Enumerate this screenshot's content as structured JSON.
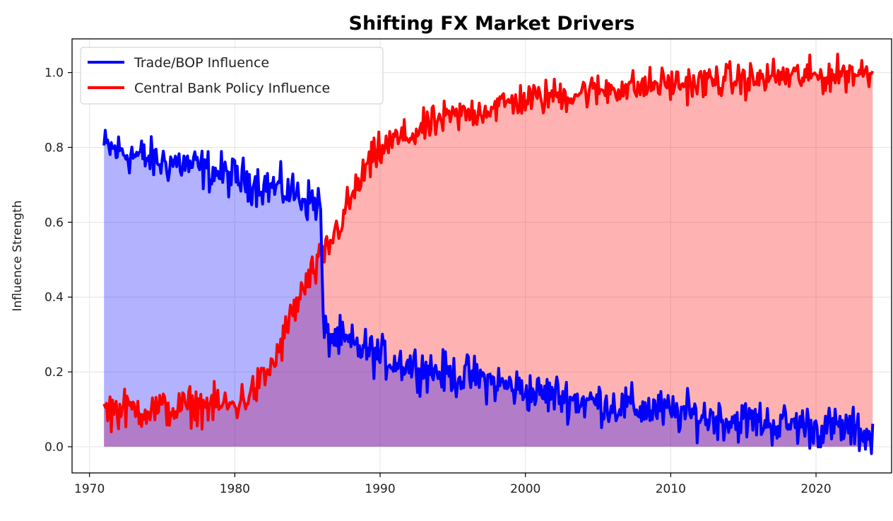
{
  "chart_data": {
    "type": "area",
    "title": "Shifting FX Market Drivers",
    "xlabel": "",
    "ylabel": "Influence Strength",
    "xlim": [
      1968.8,
      2025.2
    ],
    "ylim": [
      -0.07,
      1.09
    ],
    "x_ticks": [
      1970,
      1980,
      1990,
      2000,
      2010,
      2020
    ],
    "y_ticks": [
      0.0,
      0.2,
      0.4,
      0.6,
      0.8,
      1.0
    ],
    "y_tick_labels": [
      "0.0",
      "0.2",
      "0.4",
      "0.6",
      "0.8",
      "1.0"
    ],
    "grid": true,
    "legend_position": "upper-left",
    "x_start": 1971.0,
    "x_end": 2023.9,
    "series": [
      {
        "name": "Trade/BOP Influence",
        "color": "#0000ff",
        "fill_color": "#aab0ff",
        "x": [
          1971,
          1972,
          1973,
          1974,
          1975,
          1976,
          1977,
          1978,
          1979,
          1980,
          1981,
          1982,
          1983,
          1984,
          1985,
          1985.9,
          1986.1,
          1987,
          1988,
          1989,
          1990,
          1991,
          1992,
          1993,
          1994,
          1995,
          1996,
          1997,
          1998,
          1999,
          2000,
          2001,
          2002,
          2003,
          2004,
          2005,
          2006,
          2007,
          2008,
          2009,
          2010,
          2011,
          2012,
          2013,
          2014,
          2015,
          2016,
          2017,
          2018,
          2019,
          2020,
          2021,
          2022,
          2023,
          2023.9
        ],
        "values": [
          0.8,
          0.79,
          0.78,
          0.77,
          0.76,
          0.76,
          0.75,
          0.74,
          0.73,
          0.72,
          0.71,
          0.7,
          0.69,
          0.68,
          0.66,
          0.65,
          0.3,
          0.29,
          0.27,
          0.26,
          0.24,
          0.23,
          0.22,
          0.21,
          0.2,
          0.19,
          0.19,
          0.18,
          0.17,
          0.16,
          0.15,
          0.14,
          0.14,
          0.13,
          0.12,
          0.12,
          0.11,
          0.11,
          0.1,
          0.1,
          0.09,
          0.09,
          0.08,
          0.08,
          0.07,
          0.07,
          0.07,
          0.06,
          0.06,
          0.06,
          0.05,
          0.05,
          0.05,
          0.04,
          0.03
        ]
      },
      {
        "name": "Central Bank Policy Influence",
        "color": "#ff0000",
        "fill_color": "#ffb0b0",
        "x": [
          1971,
          1972,
          1973,
          1974,
          1975,
          1976,
          1977,
          1978,
          1979,
          1980,
          1981,
          1982,
          1983,
          1984,
          1985,
          1986,
          1987,
          1988,
          1989,
          1990,
          1991,
          1992,
          1993,
          1994,
          1995,
          1996,
          1997,
          1998,
          1999,
          2000,
          2001,
          2002,
          2003,
          2004,
          2005,
          2006,
          2007,
          2008,
          2009,
          2010,
          2011,
          2012,
          2013,
          2014,
          2015,
          2016,
          2017,
          2018,
          2019,
          2020,
          2021,
          2022,
          2023,
          2023.9
        ],
        "values": [
          0.1,
          0.1,
          0.1,
          0.1,
          0.1,
          0.1,
          0.11,
          0.11,
          0.11,
          0.11,
          0.14,
          0.18,
          0.25,
          0.36,
          0.44,
          0.5,
          0.58,
          0.66,
          0.74,
          0.79,
          0.82,
          0.83,
          0.85,
          0.87,
          0.88,
          0.89,
          0.9,
          0.91,
          0.92,
          0.93,
          0.93,
          0.94,
          0.94,
          0.95,
          0.95,
          0.96,
          0.96,
          0.96,
          0.97,
          0.97,
          0.97,
          0.97,
          0.98,
          0.98,
          0.98,
          0.98,
          0.99,
          0.99,
          0.99,
          0.99,
          0.99,
          1.0,
          1.0,
          1.0
        ]
      }
    ]
  }
}
